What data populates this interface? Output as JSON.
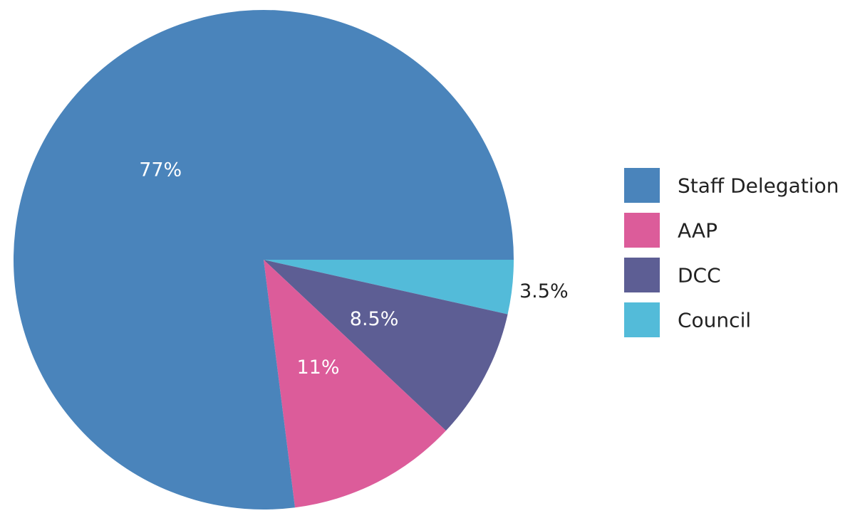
{
  "chart_data": {
    "type": "pie",
    "title": "",
    "legend_position": "right",
    "slices": [
      {
        "name": "Staff Delegation",
        "value": 77,
        "label": "77%",
        "color": "#4a84bb",
        "label_color": "#ffffff"
      },
      {
        "name": "AAP",
        "value": 11,
        "label": "11%",
        "color": "#dc5c9a",
        "label_color": "#ffffff"
      },
      {
        "name": "DCC",
        "value": 8.5,
        "label": "8.5%",
        "color": "#5d5e94",
        "label_color": "#ffffff"
      },
      {
        "name": "Council",
        "value": 3.5,
        "label": "3.5%",
        "color": "#53bbd9",
        "label_color": "#222222"
      }
    ],
    "legend": [
      {
        "name": "Staff Delegation",
        "color": "#4a84bb"
      },
      {
        "name": "AAP",
        "color": "#dc5c9a"
      },
      {
        "name": "DCC",
        "color": "#5d5e94"
      },
      {
        "name": "Council",
        "color": "#53bbd9"
      }
    ]
  }
}
